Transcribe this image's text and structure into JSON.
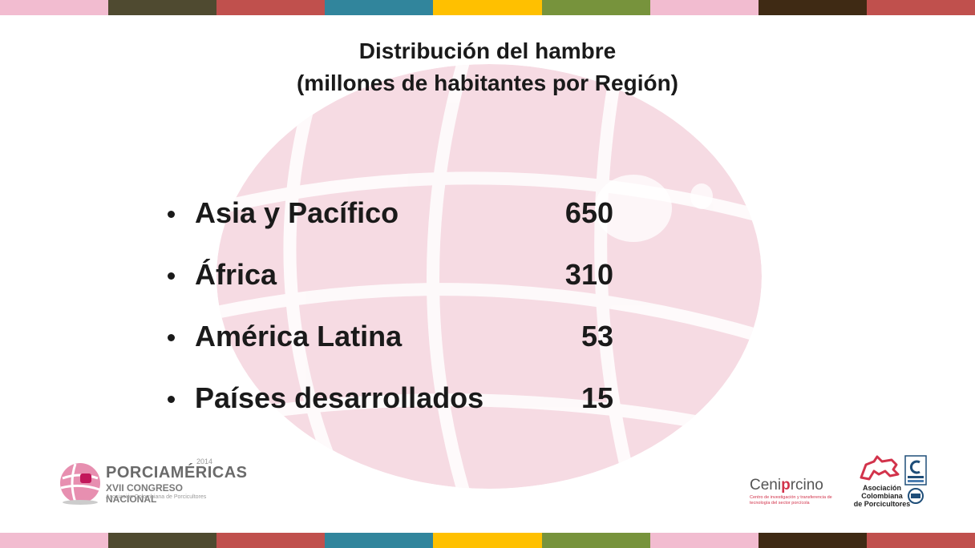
{
  "colors": {
    "stripes": [
      "#f2bcd0",
      "#4f4a30",
      "#c0504d",
      "#31859c",
      "#ffc000",
      "#77933c",
      "#f2bcd0",
      "#3f2a14",
      "#c0504d"
    ],
    "globe": "#f6dbe3",
    "text": "#1a1a1a",
    "accent": "#d2334b"
  },
  "title": {
    "line1": "Distribución del hambre",
    "line2": "(millones de habitantes por Región)"
  },
  "items": [
    {
      "region": "Asia y Pacífico",
      "value": "650"
    },
    {
      "region": "África",
      "value": "310"
    },
    {
      "region": "América Latina",
      "value": "53"
    },
    {
      "region": "Países desarrollados",
      "value": "15"
    }
  ],
  "logos": {
    "porciamericas": {
      "brand": "PORCIAMÉRICAS",
      "year": "2014",
      "subtitle": "XVII CONGRESO NACIONAL",
      "org": "Asociación Colombiana de Porcicultores"
    },
    "ceniporcino": {
      "name_prefix": "Ceni",
      "name_accent": "p",
      "name_suffix": "rcino",
      "tagline": "Centro de investigación y transferencia de tecnología del sector porcícola"
    },
    "asociacion": {
      "line1": "Asociación",
      "line2": "Colombiana",
      "line3": "de Porcicultores"
    }
  }
}
